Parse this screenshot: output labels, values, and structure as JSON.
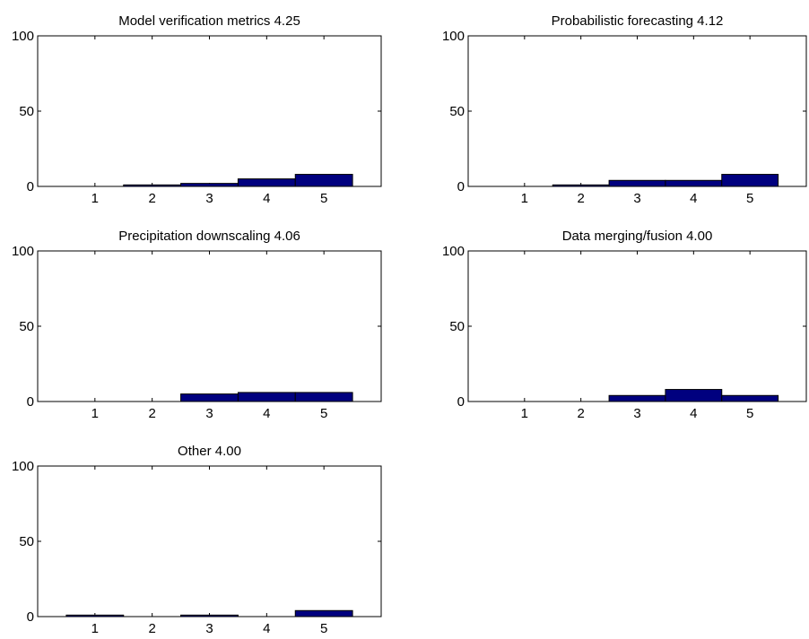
{
  "figure": {
    "background": "#ffffff",
    "bar_color": "#00007f",
    "bar_edge_color": "#000000"
  },
  "chart_data": [
    {
      "type": "bar",
      "title": "Model verification metrics  4.25",
      "categories": [
        "1",
        "2",
        "3",
        "4",
        "5"
      ],
      "values": [
        0,
        1,
        2,
        5,
        8
      ],
      "ylim": [
        0,
        100
      ],
      "yticks": [
        "0",
        "50",
        "100"
      ],
      "xlabel": "",
      "ylabel": "",
      "grid": false
    },
    {
      "type": "bar",
      "title": "Probabilistic forecasting  4.12",
      "categories": [
        "1",
        "2",
        "3",
        "4",
        "5"
      ],
      "values": [
        0,
        1,
        4,
        4,
        8
      ],
      "ylim": [
        0,
        100
      ],
      "yticks": [
        "0",
        "50",
        "100"
      ],
      "xlabel": "",
      "ylabel": "",
      "grid": false
    },
    {
      "type": "bar",
      "title": "Precipitation downscaling  4.06",
      "categories": [
        "1",
        "2",
        "3",
        "4",
        "5"
      ],
      "values": [
        0,
        0,
        5,
        6,
        6
      ],
      "ylim": [
        0,
        100
      ],
      "yticks": [
        "0",
        "50",
        "100"
      ],
      "xlabel": "",
      "ylabel": "",
      "grid": false
    },
    {
      "type": "bar",
      "title": "Data merging/fusion  4.00",
      "categories": [
        "1",
        "2",
        "3",
        "4",
        "5"
      ],
      "values": [
        0,
        0,
        4,
        8,
        4
      ],
      "ylim": [
        0,
        100
      ],
      "yticks": [
        "0",
        "50",
        "100"
      ],
      "xlabel": "",
      "ylabel": "",
      "grid": false
    },
    {
      "type": "bar",
      "title": "Other  4.00",
      "categories": [
        "1",
        "2",
        "3",
        "4",
        "5"
      ],
      "values": [
        1,
        0,
        1,
        0,
        4
      ],
      "ylim": [
        0,
        100
      ],
      "yticks": [
        "0",
        "50",
        "100"
      ],
      "xlabel": "",
      "ylabel": "",
      "grid": false
    }
  ]
}
